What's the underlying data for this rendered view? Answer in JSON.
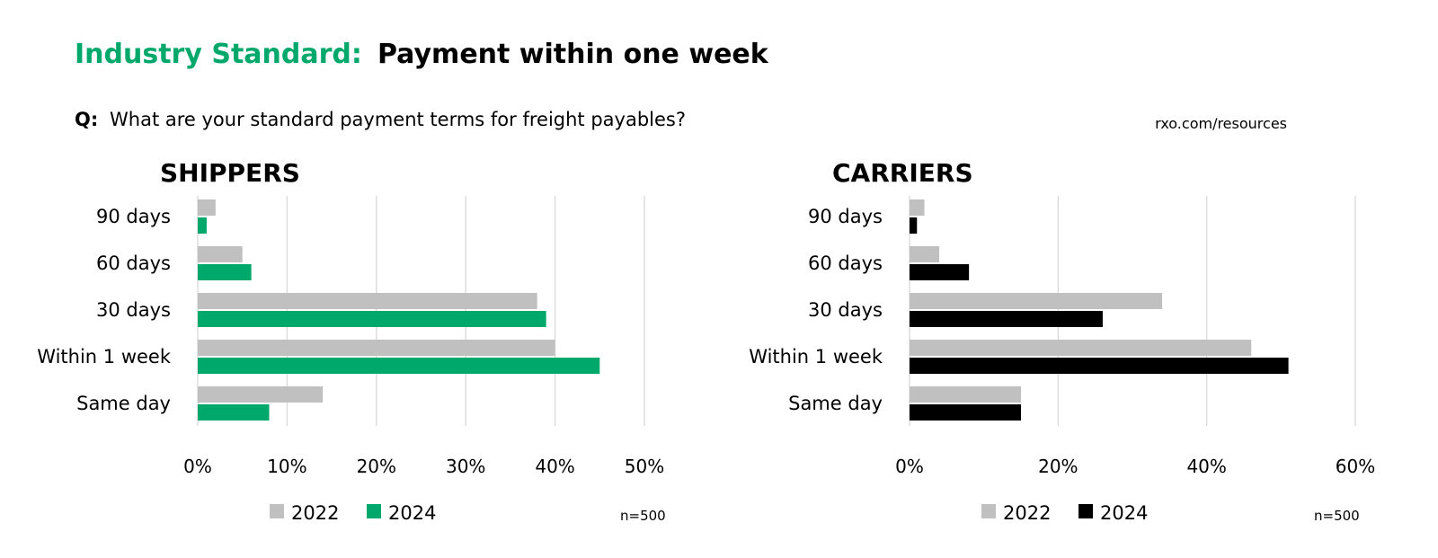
{
  "header": {
    "title_prefix": "Industry Standard:",
    "title_main": "Payment within one week",
    "question_label": "Q:",
    "question_text": "What are your standard payment terms for freight payables?",
    "source": "rxo.com/resources"
  },
  "colors": {
    "accent": "#00a86b",
    "gray_2022": "#c0c0c0",
    "black_2024": "#000000",
    "grid": "#d9d9d9"
  },
  "chart_data": [
    {
      "type": "bar",
      "orientation": "horizontal",
      "title": "SHIPPERS",
      "categories": [
        "90 days",
        "60 days",
        "30 days",
        "Within 1 week",
        "Same day"
      ],
      "series": [
        {
          "name": "2022",
          "color": "#c0c0c0",
          "values": [
            2,
            5,
            38,
            40,
            14
          ]
        },
        {
          "name": "2024",
          "color": "#00a86b",
          "values": [
            1,
            6,
            39,
            45,
            8
          ]
        }
      ],
      "xlim": [
        0,
        50
      ],
      "xticks": [
        "0%",
        "10%",
        "20%",
        "30%",
        "40%",
        "50%"
      ],
      "xtick_values": [
        0,
        10,
        20,
        30,
        40,
        50
      ],
      "grid": true,
      "legend": "bottom",
      "note": "n=500"
    },
    {
      "type": "bar",
      "orientation": "horizontal",
      "title": "CARRIERS",
      "categories": [
        "90 days",
        "60 days",
        "30 days",
        "Within 1 week",
        "Same day"
      ],
      "series": [
        {
          "name": "2022",
          "color": "#c0c0c0",
          "values": [
            2,
            4,
            34,
            46,
            15
          ]
        },
        {
          "name": "2024",
          "color": "#000000",
          "values": [
            1,
            8,
            26,
            51,
            15
          ]
        }
      ],
      "xlim": [
        0,
        60
      ],
      "xticks": [
        "0%",
        "20%",
        "40%",
        "60%"
      ],
      "xtick_values": [
        0,
        20,
        40,
        60
      ],
      "grid": true,
      "legend": "bottom",
      "note": "n=500"
    }
  ]
}
